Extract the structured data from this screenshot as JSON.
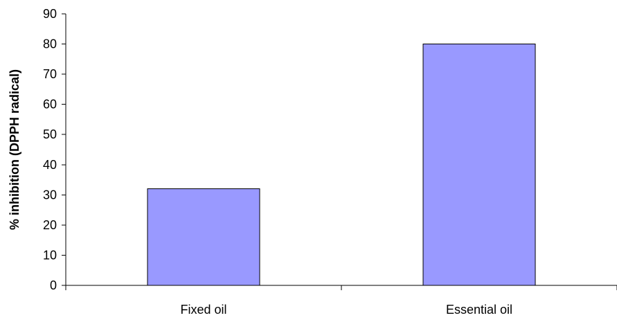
{
  "chart_data": {
    "type": "bar",
    "title": "",
    "xlabel": "",
    "ylabel": "% inhibition (DPPH radical)",
    "categories": [
      "Fixed oil",
      "Essential oil"
    ],
    "values": [
      32,
      80
    ],
    "ylim": [
      0,
      90
    ],
    "yticks": [
      0,
      10,
      20,
      30,
      40,
      50,
      60,
      70,
      80,
      90
    ],
    "grid": false,
    "legend": "none",
    "bar_color": "#9999ff",
    "bar_edge_color": "#000000"
  }
}
